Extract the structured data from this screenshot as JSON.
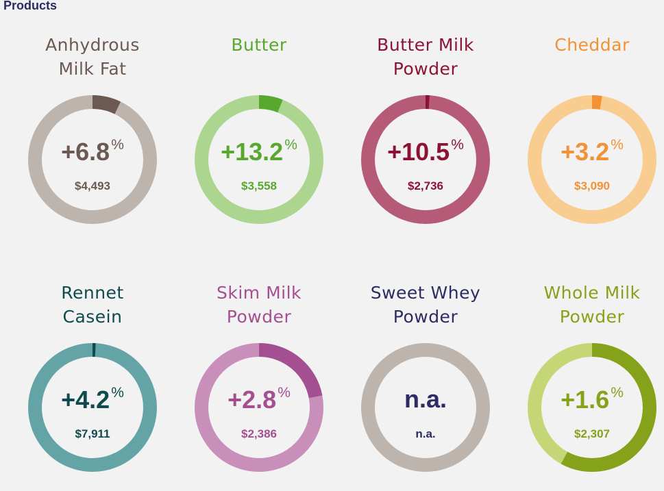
{
  "header": {
    "title": "Products"
  },
  "chart_data": {
    "type": "pie",
    "items": [
      {
        "name_lines": [
          "Anhydrous",
          "Milk Fat"
        ],
        "change": "+6.8",
        "pct_sign": "%",
        "price": "$4,493",
        "share": 0.072,
        "track_color": "#bdb4ae",
        "fill_color": "#6b5952",
        "text_color": "#6b5952"
      },
      {
        "name_lines": [
          "Butter"
        ],
        "change": "+13.2",
        "pct_sign": "%",
        "price": "$3,558",
        "share": 0.06,
        "track_color": "#acd690",
        "fill_color": "#58a82e",
        "text_color": "#58a82e"
      },
      {
        "name_lines": [
          "Butter Milk",
          "Powder"
        ],
        "change": "+10.5",
        "pct_sign": "%",
        "price": "$2,736",
        "share": 0.01,
        "track_color": "#b55b77",
        "fill_color": "#8c1334",
        "text_color": "#8c1334"
      },
      {
        "name_lines": [
          "Cheddar"
        ],
        "change": "+3.2",
        "pct_sign": "%",
        "price": "$3,090",
        "share": 0.025,
        "track_color": "#f9cd90",
        "fill_color": "#f29135",
        "text_color": "#f29135"
      },
      {
        "name_lines": [
          "Rennet",
          "Casein"
        ],
        "change": "+4.2",
        "pct_sign": "%",
        "price": "$7,911",
        "share": 0.008,
        "track_color": "#64a3a6",
        "fill_color": "#0e4a4e",
        "text_color": "#0e4a4e"
      },
      {
        "name_lines": [
          "Skim Milk",
          "Powder"
        ],
        "change": "+2.8",
        "pct_sign": "%",
        "price": "$2,386",
        "share": 0.22,
        "track_color": "#c78fba",
        "fill_color": "#a44f91",
        "text_color": "#a44f91"
      },
      {
        "name_lines": [
          "Sweet Whey",
          "Powder"
        ],
        "change": "n.a.",
        "pct_sign": "",
        "price": "n.a.",
        "share": 0,
        "track_color": "#bdb4ae",
        "fill_color": "#bdb4ae",
        "text_color": "#2c2c63"
      },
      {
        "name_lines": [
          "Whole Milk",
          "Powder"
        ],
        "change": "+1.6",
        "pct_sign": "%",
        "price": "$2,307",
        "share": 0.58,
        "track_color": "#c5d676",
        "fill_color": "#86a11a",
        "text_color": "#86a11a"
      }
    ]
  }
}
